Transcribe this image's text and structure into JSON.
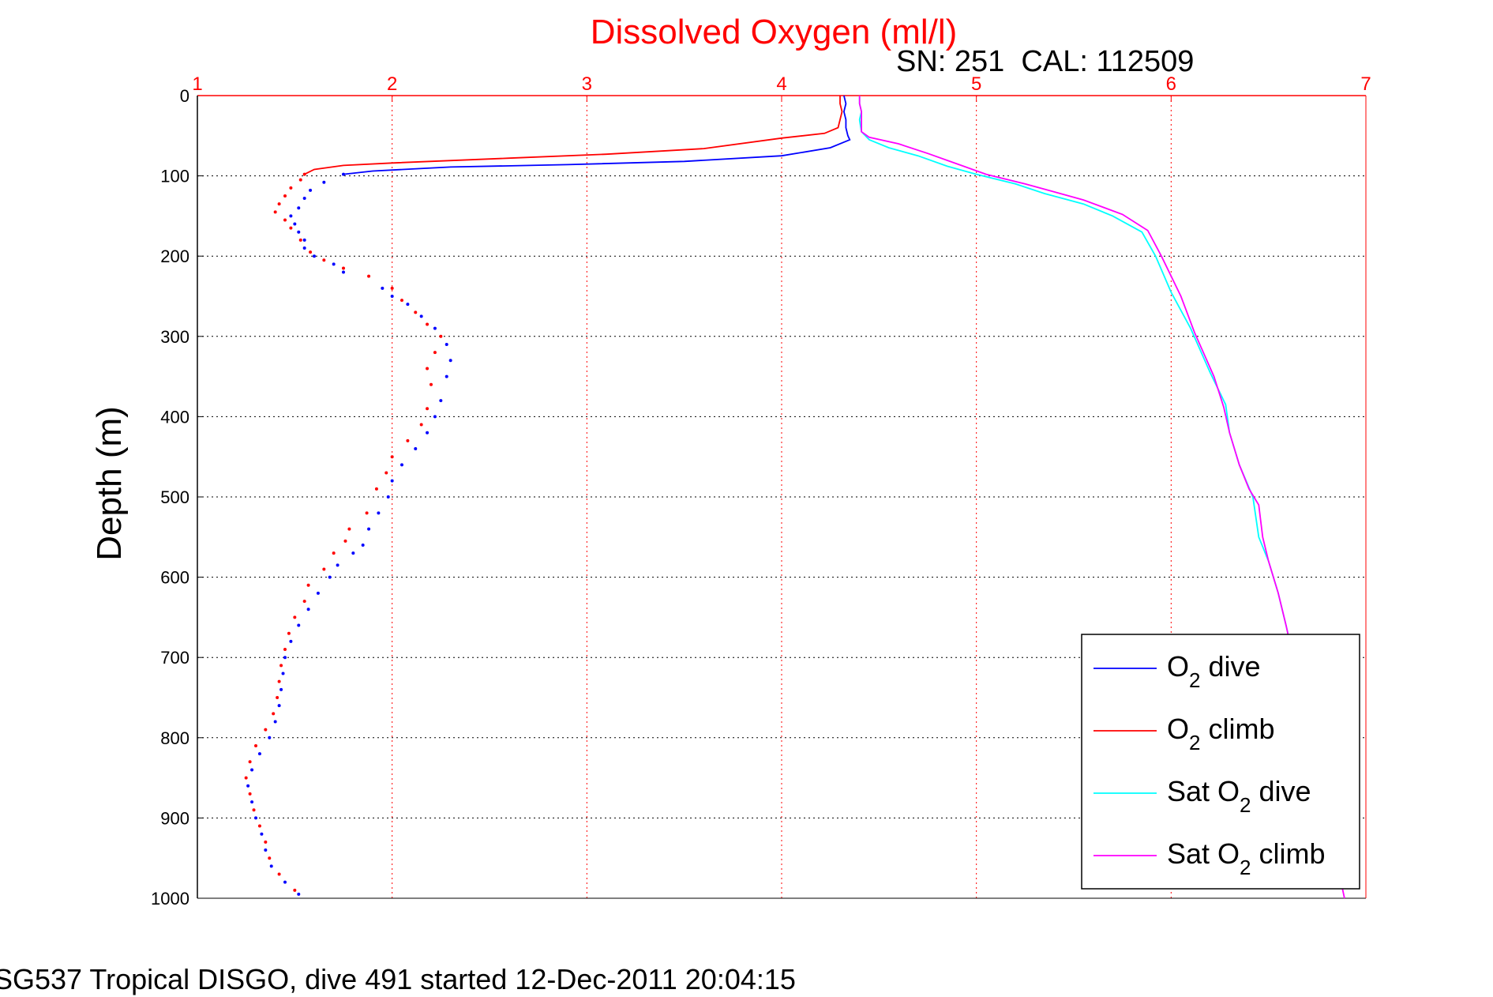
{
  "title": "Dissolved Oxygen (ml/l)",
  "subtitle": "SN: 251  CAL: 112509",
  "caption": "SG537 Tropical DISGO, dive 491 started 12-Dec-2011 20:04:15",
  "colors": {
    "title": "#ff0000",
    "x_axis": "#ff0000",
    "o2_dive": "#0000ff",
    "o2_climb": "#ff0000",
    "sat_o2_dive": "#00ffff",
    "sat_o2_climb": "#ff00ff"
  },
  "chart_data": {
    "type": "line",
    "title": "Dissolved Oxygen (ml/l)",
    "xlabel": "",
    "ylabel": "Depth (m)",
    "xlim": [
      1,
      7
    ],
    "ylim": [
      0,
      1000
    ],
    "y_reversed": true,
    "x_axis_position": "top",
    "grid": true,
    "legend_position": "bottom-right",
    "x_ticks": [
      "1",
      "2",
      "3",
      "4",
      "5",
      "6",
      "7"
    ],
    "y_ticks": [
      "0",
      "100",
      "200",
      "300",
      "400",
      "500",
      "600",
      "700",
      "800",
      "900",
      "1000"
    ],
    "series": [
      {
        "key": "o2_dive",
        "name": "O2 dive",
        "legend_main": "O",
        "legend_sub": "2",
        "legend_rest": " dive",
        "color": "#0000ff",
        "style": "line",
        "points": [
          [
            4.32,
            0
          ],
          [
            4.33,
            10
          ],
          [
            4.32,
            20
          ],
          [
            4.33,
            30
          ],
          [
            4.33,
            40
          ],
          [
            4.34,
            50
          ],
          [
            4.35,
            55
          ],
          [
            4.25,
            65
          ],
          [
            4.0,
            75
          ],
          [
            3.5,
            82
          ],
          [
            2.9,
            86
          ],
          [
            2.3,
            89
          ],
          [
            1.9,
            94
          ],
          [
            1.75,
            98
          ]
        ]
      },
      {
        "key": "o2_dive_deep",
        "name": "O2 dive",
        "color": "#0000ff",
        "style": "dots",
        "points": [
          [
            1.75,
            98
          ],
          [
            1.65,
            108
          ],
          [
            1.58,
            118
          ],
          [
            1.55,
            128
          ],
          [
            1.52,
            140
          ],
          [
            1.48,
            150
          ],
          [
            1.5,
            160
          ],
          [
            1.52,
            170
          ],
          [
            1.55,
            180
          ],
          [
            1.55,
            190
          ],
          [
            1.6,
            200
          ],
          [
            1.7,
            210
          ],
          [
            1.75,
            220
          ],
          [
            1.95,
            240
          ],
          [
            2.0,
            250
          ],
          [
            2.08,
            260
          ],
          [
            2.15,
            275
          ],
          [
            2.22,
            290
          ],
          [
            2.28,
            310
          ],
          [
            2.3,
            330
          ],
          [
            2.28,
            350
          ],
          [
            2.25,
            380
          ],
          [
            2.22,
            400
          ],
          [
            2.18,
            420
          ],
          [
            2.12,
            440
          ],
          [
            2.05,
            460
          ],
          [
            2.0,
            480
          ],
          [
            1.98,
            500
          ],
          [
            1.93,
            520
          ],
          [
            1.88,
            540
          ],
          [
            1.85,
            560
          ],
          [
            1.8,
            570
          ],
          [
            1.72,
            585
          ],
          [
            1.68,
            600
          ],
          [
            1.62,
            620
          ],
          [
            1.57,
            640
          ],
          [
            1.52,
            660
          ],
          [
            1.48,
            680
          ],
          [
            1.45,
            700
          ],
          [
            1.44,
            720
          ],
          [
            1.43,
            740
          ],
          [
            1.42,
            760
          ],
          [
            1.4,
            780
          ],
          [
            1.37,
            800
          ],
          [
            1.32,
            820
          ],
          [
            1.28,
            840
          ],
          [
            1.26,
            860
          ],
          [
            1.28,
            880
          ],
          [
            1.3,
            900
          ],
          [
            1.33,
            920
          ],
          [
            1.35,
            940
          ],
          [
            1.38,
            960
          ],
          [
            1.45,
            980
          ],
          [
            1.52,
            995
          ]
        ]
      },
      {
        "key": "o2_climb",
        "name": "O2 climb",
        "legend_main": "O",
        "legend_sub": "2",
        "legend_rest": " climb",
        "color": "#ff0000",
        "style": "line",
        "points": [
          [
            4.3,
            0
          ],
          [
            4.3,
            10
          ],
          [
            4.31,
            20
          ],
          [
            4.3,
            30
          ],
          [
            4.29,
            40
          ],
          [
            4.22,
            47
          ],
          [
            4.0,
            53
          ],
          [
            3.6,
            66
          ],
          [
            3.1,
            73
          ],
          [
            2.6,
            78
          ],
          [
            2.0,
            84
          ],
          [
            1.75,
            87
          ],
          [
            1.6,
            92
          ],
          [
            1.55,
            98
          ]
        ]
      },
      {
        "key": "o2_climb_deep",
        "name": "O2 climb",
        "color": "#ff0000",
        "style": "dots",
        "points": [
          [
            1.55,
            98
          ],
          [
            1.53,
            105
          ],
          [
            1.48,
            115
          ],
          [
            1.45,
            125
          ],
          [
            1.42,
            135
          ],
          [
            1.4,
            145
          ],
          [
            1.45,
            155
          ],
          [
            1.48,
            165
          ],
          [
            1.53,
            180
          ],
          [
            1.58,
            195
          ],
          [
            1.65,
            205
          ],
          [
            1.75,
            215
          ],
          [
            1.88,
            225
          ],
          [
            2.0,
            240
          ],
          [
            2.05,
            255
          ],
          [
            2.12,
            270
          ],
          [
            2.18,
            285
          ],
          [
            2.25,
            300
          ],
          [
            2.22,
            320
          ],
          [
            2.18,
            340
          ],
          [
            2.2,
            360
          ],
          [
            2.18,
            390
          ],
          [
            2.15,
            410
          ],
          [
            2.08,
            430
          ],
          [
            2.0,
            450
          ],
          [
            1.97,
            470
          ],
          [
            1.92,
            490
          ],
          [
            1.87,
            520
          ],
          [
            1.78,
            540
          ],
          [
            1.76,
            555
          ],
          [
            1.7,
            570
          ],
          [
            1.65,
            590
          ],
          [
            1.57,
            610
          ],
          [
            1.55,
            630
          ],
          [
            1.5,
            650
          ],
          [
            1.47,
            670
          ],
          [
            1.45,
            690
          ],
          [
            1.43,
            710
          ],
          [
            1.42,
            730
          ],
          [
            1.41,
            750
          ],
          [
            1.39,
            770
          ],
          [
            1.35,
            790
          ],
          [
            1.3,
            810
          ],
          [
            1.27,
            830
          ],
          [
            1.25,
            850
          ],
          [
            1.27,
            870
          ],
          [
            1.29,
            890
          ],
          [
            1.32,
            910
          ],
          [
            1.35,
            930
          ],
          [
            1.37,
            950
          ],
          [
            1.42,
            970
          ],
          [
            1.5,
            990
          ]
        ]
      },
      {
        "key": "sat_o2_dive",
        "name": "Sat O2 dive",
        "legend_main": "Sat O",
        "legend_sub": "2",
        "legend_rest": " dive",
        "color": "#00ffff",
        "style": "line",
        "points": [
          [
            4.4,
            0
          ],
          [
            4.4,
            10
          ],
          [
            4.41,
            20
          ],
          [
            4.4,
            30
          ],
          [
            4.41,
            45
          ],
          [
            4.45,
            55
          ],
          [
            4.55,
            65
          ],
          [
            4.7,
            75
          ],
          [
            4.85,
            88
          ],
          [
            5.0,
            98
          ],
          [
            5.2,
            110
          ],
          [
            5.35,
            122
          ],
          [
            5.55,
            135
          ],
          [
            5.7,
            150
          ],
          [
            5.85,
            170
          ],
          [
            5.92,
            200
          ],
          [
            6.0,
            245
          ],
          [
            6.1,
            290
          ],
          [
            6.2,
            345
          ],
          [
            6.28,
            385
          ],
          [
            6.3,
            420
          ],
          [
            6.35,
            460
          ],
          [
            6.42,
            500
          ],
          [
            6.45,
            550
          ],
          [
            6.5,
            580
          ],
          [
            6.55,
            620
          ],
          [
            6.6,
            670
          ]
        ]
      },
      {
        "key": "sat_o2_climb",
        "name": "Sat O2 climb",
        "legend_main": "Sat O",
        "legend_sub": "2",
        "legend_rest": " climb",
        "color": "#ff00ff",
        "style": "line",
        "points": [
          [
            4.4,
            0
          ],
          [
            4.4,
            10
          ],
          [
            4.41,
            20
          ],
          [
            4.41,
            30
          ],
          [
            4.41,
            45
          ],
          [
            4.45,
            52
          ],
          [
            4.6,
            60
          ],
          [
            4.75,
            72
          ],
          [
            4.9,
            85
          ],
          [
            5.05,
            98
          ],
          [
            5.25,
            110
          ],
          [
            5.4,
            120
          ],
          [
            5.55,
            130
          ],
          [
            5.75,
            148
          ],
          [
            5.88,
            168
          ],
          [
            5.95,
            200
          ],
          [
            6.05,
            250
          ],
          [
            6.12,
            295
          ],
          [
            6.22,
            350
          ],
          [
            6.27,
            388
          ],
          [
            6.3,
            420
          ],
          [
            6.35,
            460
          ],
          [
            6.4,
            490
          ],
          [
            6.45,
            510
          ],
          [
            6.47,
            550
          ],
          [
            6.5,
            580
          ],
          [
            6.55,
            620
          ],
          [
            6.59,
            660
          ],
          [
            6.89,
            1000
          ]
        ]
      }
    ]
  }
}
